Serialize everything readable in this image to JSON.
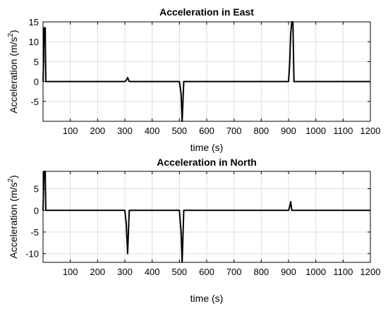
{
  "chart_data": [
    {
      "type": "line",
      "title": "Acceleration in East",
      "xlabel": "time (s)",
      "ylabel": "Acceleration (m/s",
      "ylabel_sup": "2",
      "ylabel_end": ")",
      "xlim": [
        0,
        1200
      ],
      "ylim": [
        -10,
        15
      ],
      "xticks": [
        100,
        200,
        300,
        400,
        500,
        600,
        700,
        800,
        900,
        1000,
        1100,
        1200
      ],
      "yticks": [
        -5,
        0,
        5,
        10,
        15
      ],
      "grid": true,
      "line_color": "#000000",
      "series": [
        {
          "x": [
            0,
            2,
            4,
            8,
            10,
            300,
            305,
            310,
            316,
            500,
            506,
            510,
            516,
            900,
            904,
            908,
            912,
            916,
            920,
            1200
          ],
          "y": [
            0,
            5,
            13.5,
            13.5,
            0,
            0,
            0.3,
            1,
            0,
            0,
            -3,
            -10,
            0,
            0,
            4,
            12,
            15,
            15,
            0,
            0
          ]
        }
      ]
    },
    {
      "type": "line",
      "title": "Acceleration in North",
      "xlabel": "time (s)",
      "ylabel": "Acceleration (m/s",
      "ylabel_sup": "2",
      "ylabel_end": ")",
      "xlim": [
        0,
        1200
      ],
      "ylim": [
        -12,
        9
      ],
      "xticks": [
        100,
        200,
        300,
        400,
        500,
        600,
        700,
        800,
        900,
        1000,
        1100,
        1200
      ],
      "yticks": [
        -10,
        -5,
        0,
        5
      ],
      "grid": true,
      "line_color": "#000000",
      "series": [
        {
          "x": [
            0,
            2,
            4,
            8,
            10,
            300,
            305,
            310,
            316,
            500,
            506,
            510,
            516,
            900,
            904,
            908,
            912,
            916,
            1200
          ],
          "y": [
            0,
            5,
            9,
            9,
            0,
            0,
            -3,
            -10,
            0,
            0,
            -5,
            -12,
            0,
            0,
            0.8,
            2,
            0,
            0,
            0
          ]
        }
      ]
    }
  ]
}
